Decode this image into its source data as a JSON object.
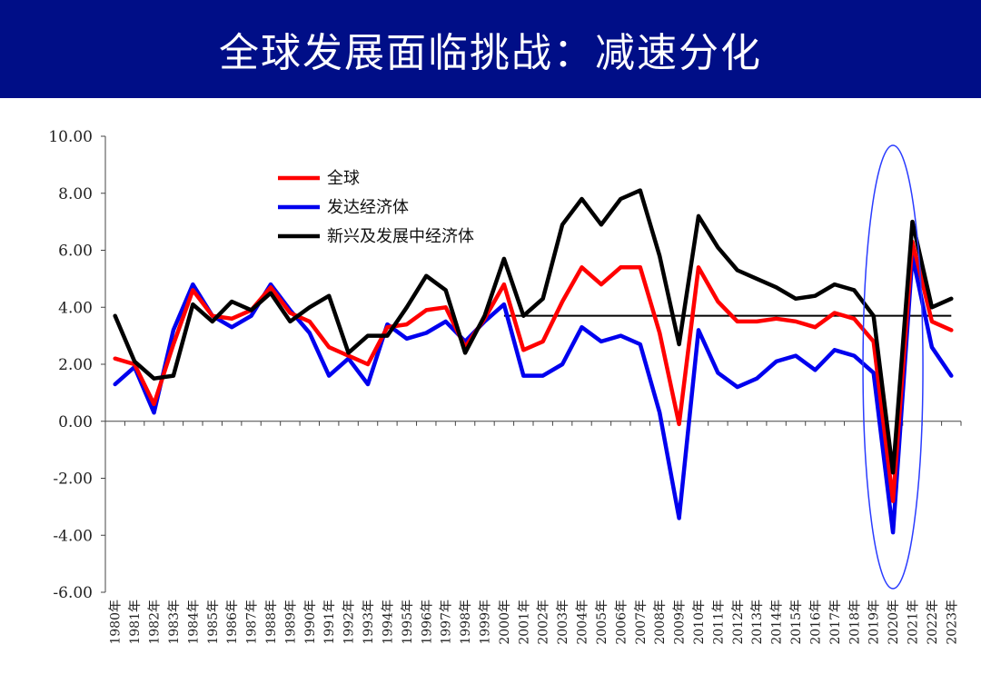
{
  "header": {
    "title": "全球发展面临挑战：减速分化"
  },
  "chart_data": {
    "type": "line",
    "title": "全球发展面临挑战：减速分化",
    "xlabel": "",
    "ylabel": "",
    "ylim": [
      -6,
      10
    ],
    "yticks": [
      "10.00",
      "8.00",
      "6.00",
      "4.00",
      "2.00",
      "0.00",
      "-2.00",
      "-4.00",
      "-6.00"
    ],
    "ytick_values": [
      10,
      8,
      6,
      4,
      2,
      0,
      -2,
      -4,
      -6
    ],
    "categories": [
      "1980年",
      "1981年",
      "1982年",
      "1983年",
      "1984年",
      "1985年",
      "1986年",
      "1987年",
      "1988年",
      "1989年",
      "1990年",
      "1991年",
      "1992年",
      "1993年",
      "1994年",
      "1995年",
      "1996年",
      "1997年",
      "1998年",
      "1999年",
      "2000年",
      "2001年",
      "2002年",
      "2003年",
      "2004年",
      "2005年",
      "2006年",
      "2007年",
      "2008年",
      "2009年",
      "2010年",
      "2011年",
      "2012年",
      "2013年",
      "2014年",
      "2015年",
      "2016年",
      "2017年",
      "2018年",
      "2019年",
      "2020年",
      "2021年",
      "2022年",
      "2023年"
    ],
    "legend_position": "top-left",
    "series": [
      {
        "name": "全球",
        "color": "#ff0000",
        "values": [
          2.2,
          2.0,
          0.6,
          2.7,
          4.6,
          3.7,
          3.6,
          3.9,
          4.7,
          3.8,
          3.5,
          2.6,
          2.3,
          2.0,
          3.3,
          3.4,
          3.9,
          4.0,
          2.6,
          3.6,
          4.8,
          2.5,
          2.8,
          4.2,
          5.4,
          4.8,
          5.4,
          5.4,
          3.1,
          -0.1,
          5.4,
          4.2,
          3.5,
          3.5,
          3.6,
          3.5,
          3.3,
          3.8,
          3.6,
          2.8,
          -2.8,
          6.3,
          3.5,
          3.2
        ]
      },
      {
        "name": "发达经济体",
        "color": "#0000ee",
        "values": [
          1.3,
          1.9,
          0.3,
          3.2,
          4.8,
          3.7,
          3.3,
          3.7,
          4.8,
          3.9,
          3.1,
          1.6,
          2.2,
          1.3,
          3.4,
          2.9,
          3.1,
          3.5,
          2.8,
          3.5,
          4.1,
          1.6,
          1.6,
          2.0,
          3.3,
          2.8,
          3.0,
          2.7,
          0.3,
          -3.4,
          3.2,
          1.7,
          1.2,
          1.5,
          2.1,
          2.3,
          1.8,
          2.5,
          2.3,
          1.7,
          -3.9,
          5.8,
          2.6,
          1.6
        ]
      },
      {
        "name": "新兴及发展中经济体",
        "color": "#000000",
        "values": [
          3.7,
          2.1,
          1.5,
          1.6,
          4.1,
          3.5,
          4.2,
          3.9,
          4.5,
          3.5,
          4.0,
          4.4,
          2.4,
          3.0,
          3.0,
          4.0,
          5.1,
          4.6,
          2.4,
          3.7,
          5.7,
          3.7,
          4.3,
          6.9,
          7.8,
          6.9,
          7.8,
          8.1,
          5.8,
          2.7,
          7.2,
          6.1,
          5.3,
          5.0,
          4.7,
          4.3,
          4.4,
          4.8,
          4.6,
          3.7,
          -1.8,
          7.0,
          4.0,
          4.3
        ]
      }
    ],
    "reference_line": {
      "y": 3.7,
      "from": "2000年",
      "to": "2023年",
      "color": "#000000"
    },
    "highlight": {
      "category": "2020年",
      "shape": "ellipse",
      "color": "#2a3cff"
    },
    "grid": false
  }
}
